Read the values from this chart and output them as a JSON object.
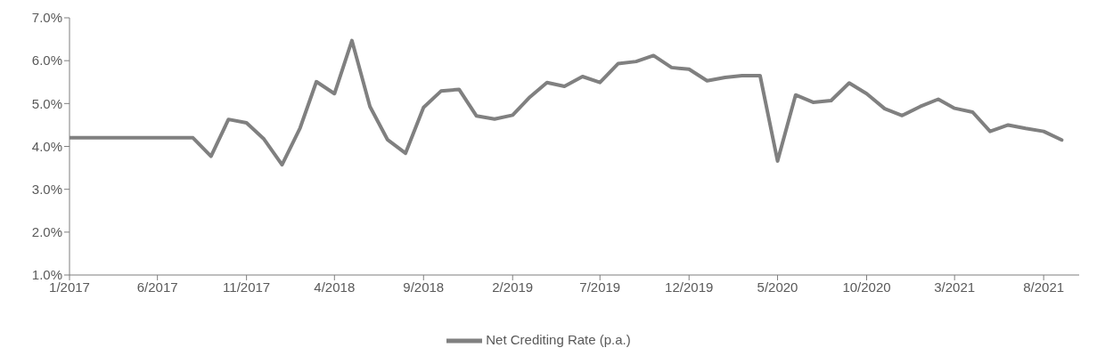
{
  "chart_data": {
    "type": "line",
    "x": [
      "2017-01",
      "2017-02",
      "2017-03",
      "2017-04",
      "2017-05",
      "2017-06",
      "2017-07",
      "2017-08",
      "2017-09",
      "2017-10",
      "2017-11",
      "2017-12",
      "2018-01",
      "2018-02",
      "2018-03",
      "2018-04",
      "2018-05",
      "2018-06",
      "2018-07",
      "2018-08",
      "2018-09",
      "2018-10",
      "2018-11",
      "2018-12",
      "2019-01",
      "2019-02",
      "2019-03",
      "2019-04",
      "2019-05",
      "2019-06",
      "2019-07",
      "2019-08",
      "2019-09",
      "2019-10",
      "2019-11",
      "2019-12",
      "2020-01",
      "2020-02",
      "2020-03",
      "2020-04",
      "2020-05",
      "2020-06",
      "2020-07",
      "2020-08",
      "2020-09",
      "2020-10",
      "2020-11",
      "2020-12",
      "2021-01",
      "2021-02",
      "2021-03",
      "2021-04",
      "2021-05",
      "2021-06",
      "2021-07",
      "2021-08",
      "2021-09"
    ],
    "series": [
      {
        "name": "Net Crediting Rate (p.a.)",
        "color": "#808080",
        "values": [
          4.2,
          4.2,
          4.2,
          4.2,
          4.2,
          4.2,
          4.2,
          4.2,
          3.77,
          4.63,
          4.55,
          4.17,
          3.57,
          4.43,
          5.51,
          5.23,
          6.47,
          4.93,
          4.16,
          3.84,
          4.91,
          5.29,
          5.33,
          4.71,
          4.64,
          4.73,
          5.13,
          5.49,
          5.4,
          5.63,
          5.49,
          5.93,
          5.98,
          6.12,
          5.84,
          5.8,
          5.53,
          5.61,
          5.65,
          5.65,
          3.66,
          5.2,
          5.03,
          5.07,
          5.48,
          5.23,
          4.88,
          4.72,
          4.93,
          5.1,
          4.89,
          4.8,
          4.35,
          4.5,
          4.42,
          4.35,
          4.15
        ]
      }
    ],
    "xlim": [
      "2017-01",
      "2021-10"
    ],
    "xticks": [
      {
        "value": "2017-01",
        "label": "1/2017"
      },
      {
        "value": "2017-06",
        "label": "6/2017"
      },
      {
        "value": "2017-11",
        "label": "11/2017"
      },
      {
        "value": "2018-04",
        "label": "4/2018"
      },
      {
        "value": "2018-09",
        "label": "9/2018"
      },
      {
        "value": "2019-02",
        "label": "2/2019"
      },
      {
        "value": "2019-07",
        "label": "7/2019"
      },
      {
        "value": "2019-12",
        "label": "12/2019"
      },
      {
        "value": "2020-05",
        "label": "5/2020"
      },
      {
        "value": "2020-10",
        "label": "10/2020"
      },
      {
        "value": "2021-03",
        "label": "3/2021"
      },
      {
        "value": "2021-08",
        "label": "8/2021"
      }
    ],
    "ylim": [
      1,
      7
    ],
    "yticks": [
      {
        "value": 1,
        "label": "1.0%"
      },
      {
        "value": 2,
        "label": "2.0%"
      },
      {
        "value": 3,
        "label": "3.0%"
      },
      {
        "value": 4,
        "label": "4.0%"
      },
      {
        "value": 5,
        "label": "5.0%"
      },
      {
        "value": 6,
        "label": "6.0%"
      },
      {
        "value": 7,
        "label": "7.0%"
      }
    ],
    "grid": false,
    "legend": "bottom",
    "marker": "none",
    "line_style": "solid"
  }
}
